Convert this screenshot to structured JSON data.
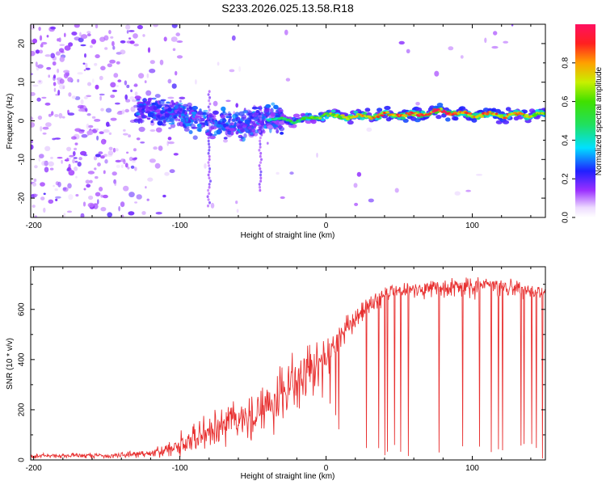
{
  "title": "S233.2026.025.13.58.R18",
  "colorbar": {
    "label": "Normalized spectral amplitude",
    "ticks": [
      0.0,
      0.2,
      0.4,
      0.6,
      0.8
    ],
    "tick_labels": [
      "0.0",
      "0.2",
      "0.4",
      "0.6",
      "0.8"
    ]
  },
  "chart_data": [
    {
      "type": "heatmap",
      "title": "S233.2026.025.13.58.R18",
      "xlabel": "Height of straight line (km)",
      "ylabel": "Frequency (Hz)",
      "xlim": [
        -202,
        150
      ],
      "ylim": [
        -25,
        25
      ],
      "xticks": [
        -200,
        -100,
        0,
        100
      ],
      "xtick_labels": [
        "-200",
        "-100",
        "0",
        "100"
      ],
      "yticks": [
        -20,
        -10,
        0,
        10,
        20
      ],
      "ytick_labels": [
        "-20",
        "-10",
        "0",
        "10",
        "20"
      ],
      "value_range": [
        0,
        1
      ],
      "description_of_signal": "Scattered low-amplitude noise for heights below about -120 km; a coherent band near 1-2 Hz emerges from about -40 km and reaches the highest amplitudes (about 0.8-1.0) between 10 and 150 km.",
      "ridge": {
        "x": [
          -120,
          -100,
          -80,
          -60,
          -40,
          -20,
          0,
          20,
          40,
          60,
          80,
          100,
          120,
          145
        ],
        "freq_hz": [
          3,
          2,
          -1,
          -1,
          0.5,
          0,
          1.5,
          1,
          1.5,
          1.5,
          2.5,
          1.5,
          1.5,
          1.5
        ],
        "amplitude": [
          0.15,
          0.2,
          0.25,
          0.3,
          0.45,
          0.55,
          0.65,
          0.8,
          0.85,
          0.9,
          0.95,
          0.85,
          0.85,
          0.75
        ]
      }
    },
    {
      "type": "line",
      "xlabel": "Height of straight line (km)",
      "ylabel": "SNR (10 * v/v)",
      "xlim": [
        -202,
        150
      ],
      "ylim": [
        0,
        770
      ],
      "xticks": [
        -200,
        -100,
        0,
        100
      ],
      "xtick_labels": [
        "-200",
        "-100",
        "0",
        "100"
      ],
      "yticks": [
        0,
        200,
        400,
        600
      ],
      "ytick_labels": [
        "0",
        "200",
        "400",
        "600"
      ],
      "series": [
        {
          "name": "SNR",
          "color": "#e83030",
          "x": [
            -202,
            -190,
            -180,
            -170,
            -160,
            -150,
            -140,
            -130,
            -120,
            -110,
            -100,
            -90,
            -80,
            -70,
            -60,
            -50,
            -40,
            -30,
            -20,
            -10,
            0,
            10,
            20,
            30,
            40,
            50,
            60,
            70,
            80,
            90,
            100,
            110,
            120,
            130,
            140,
            150
          ],
          "envelope_mean": [
            15,
            18,
            15,
            20,
            18,
            15,
            20,
            25,
            25,
            40,
            60,
            80,
            120,
            140,
            170,
            150,
            220,
            260,
            320,
            360,
            420,
            500,
            570,
            620,
            660,
            680,
            680,
            690,
            680,
            690,
            680,
            700,
            680,
            690,
            670,
            660
          ],
          "envelope_spread": [
            15,
            15,
            15,
            15,
            15,
            15,
            18,
            20,
            25,
            40,
            60,
            90,
            120,
            120,
            130,
            130,
            160,
            170,
            170,
            150,
            130,
            90,
            70,
            60,
            50,
            50,
            50,
            50,
            50,
            50,
            50,
            50,
            50,
            50,
            50,
            50
          ]
        }
      ]
    }
  ]
}
